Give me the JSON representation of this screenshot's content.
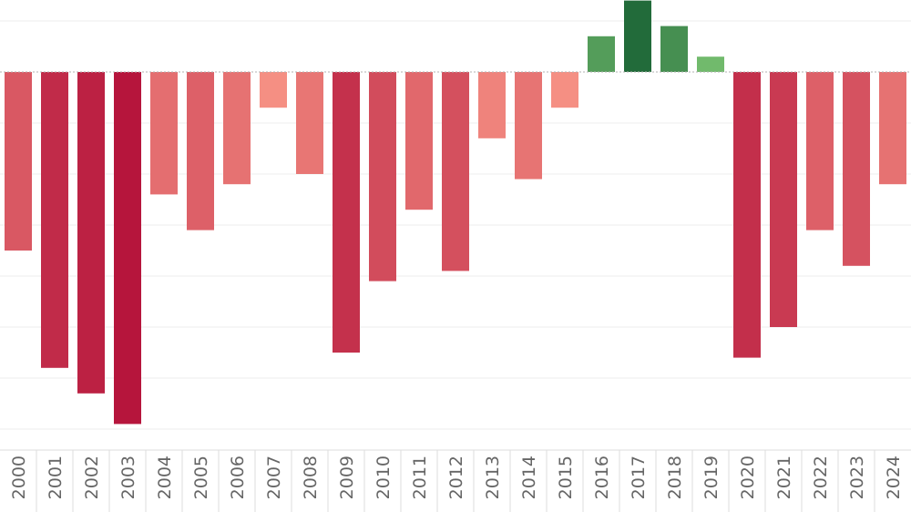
{
  "chart_data": {
    "type": "bar",
    "title": "",
    "xlabel": "",
    "ylabel": "",
    "categories": [
      "2000",
      "2001",
      "2002",
      "2003",
      "2004",
      "2005",
      "2006",
      "2007",
      "2008",
      "2009",
      "2010",
      "2011",
      "2012",
      "2013",
      "2014",
      "2015",
      "2016",
      "2017",
      "2018",
      "2019",
      "2020",
      "2021",
      "2022",
      "2023",
      "2024"
    ],
    "values": [
      -3.5,
      -5.8,
      -6.3,
      -6.9,
      -2.4,
      -3.1,
      -2.2,
      -0.7,
      -2.0,
      -5.5,
      -4.1,
      -2.7,
      -3.9,
      -1.3,
      -2.1,
      -0.7,
      0.7,
      1.4,
      0.9,
      0.3,
      -5.6,
      -5.0,
      -3.1,
      -3.8,
      -2.2
    ],
    "ylim": [
      -7.0,
      1.4
    ],
    "grid": true,
    "legend": "none",
    "colors": {
      "negative_light": "#fc9d8b",
      "negative_dark": "#b5133b",
      "positive_light": "#86cf7a",
      "positive_dark": "#226b3a"
    }
  }
}
